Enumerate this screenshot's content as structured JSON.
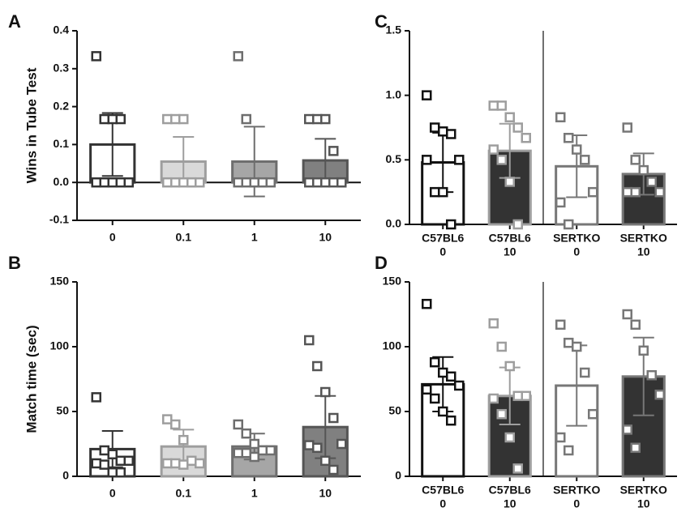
{
  "chart_data": [
    {
      "type": "bar",
      "label": "A",
      "y_label": "Wins in Tube Test",
      "categories": [
        "0",
        "0.1",
        "1",
        "10"
      ],
      "values": [
        0.1,
        0.055,
        0.055,
        0.058
      ],
      "errors": [
        0.083,
        0.065,
        0.092,
        0.057
      ],
      "points": [
        [
          0.333,
          0.167,
          0.167,
          0.167,
          0,
          0,
          0,
          0,
          0
        ],
        [
          0.167,
          0.167,
          0.167,
          0,
          0,
          0,
          0,
          0,
          0
        ],
        [
          0.333,
          0.167,
          0,
          0,
          0,
          0,
          0,
          0,
          0
        ],
        [
          0.167,
          0.167,
          0.167,
          0.083,
          0,
          0,
          0,
          0,
          0,
          0
        ]
      ],
      "fill_colors": [
        "#ffffff",
        "#d9d9d9",
        "#a6a6a6",
        "#808080"
      ],
      "edge_colors": [
        "#333333",
        "#9e9e9e",
        "#6e6e6e",
        "#555555"
      ],
      "ylim": [
        -0.1,
        0.4
      ],
      "yticks": [
        -0.1,
        {
          "value": 0,
          "label": "0.0"
        },
        0.1,
        0.2,
        0.3,
        0.4
      ]
    },
    {
      "type": "bar",
      "label": "B",
      "y_label": "Match time (sec)",
      "categories": [
        "0",
        "0.1",
        "1",
        "10"
      ],
      "values": [
        21,
        23,
        23,
        38
      ],
      "errors": [
        14,
        13,
        10,
        24
      ],
      "points": [
        [
          61,
          20,
          17,
          12,
          12,
          10,
          9,
          3,
          3
        ],
        [
          44,
          40,
          28,
          12,
          10,
          10,
          10,
          9
        ],
        [
          40,
          33,
          25,
          20,
          20,
          18,
          18,
          15
        ],
        [
          105,
          85,
          65,
          45,
          25,
          24,
          22,
          12,
          5
        ]
      ],
      "fill_colors": [
        "#ffffff",
        "#d9d9d9",
        "#a6a6a6",
        "#808080"
      ],
      "edge_colors": [
        "#333333",
        "#9e9e9e",
        "#6e6e6e",
        "#555555"
      ],
      "ylim": [
        0,
        150
      ],
      "yticks": [
        0,
        50,
        100,
        150
      ]
    },
    {
      "type": "bar",
      "label": "C",
      "categories": [
        [
          "C57BL6",
          "0"
        ],
        [
          "C57BL6",
          "10"
        ],
        [
          "SERTKO",
          "0"
        ],
        [
          "SERTKO",
          "10"
        ]
      ],
      "values": [
        0.48,
        0.57,
        0.45,
        0.39
      ],
      "errors": [
        0.23,
        0.21,
        0.24,
        0.16
      ],
      "points": [
        [
          1.0,
          0.75,
          0.72,
          0.7,
          0.5,
          0.5,
          0.25,
          0.25,
          0
        ],
        [
          0.92,
          0.92,
          0.83,
          0.75,
          0.67,
          0.58,
          0.5,
          0.33,
          0
        ],
        [
          0.83,
          0.67,
          0.58,
          0.5,
          0.25,
          0.17,
          0
        ],
        [
          0.75,
          0.5,
          0.42,
          0.33,
          0.25,
          0.25,
          0.25
        ]
      ],
      "fill_colors": [
        "#ffffff",
        "#333333",
        "#ffffff",
        "#333333"
      ],
      "edge_colors": [
        "#111111",
        "#9e9e9e",
        "#777777",
        "#777777"
      ],
      "group_divider": true,
      "ylim": [
        0,
        1.5
      ],
      "yticks": [
        {
          "value": 0,
          "label": "0.0"
        },
        0.5,
        {
          "value": 1,
          "label": "1.0"
        },
        1.5
      ]
    },
    {
      "type": "bar",
      "label": "D",
      "categories": [
        [
          "C57BL6",
          "0"
        ],
        [
          "C57BL6",
          "10"
        ],
        [
          "SERTKO",
          "0"
        ],
        [
          "SERTKO",
          "10"
        ]
      ],
      "values": [
        71,
        62,
        70,
        77
      ],
      "errors": [
        21,
        22,
        31,
        30
      ],
      "points": [
        [
          133,
          88,
          80,
          77,
          70,
          67,
          60,
          50,
          43
        ],
        [
          118,
          100,
          85,
          62,
          62,
          60,
          48,
          30,
          6
        ],
        [
          117,
          103,
          100,
          80,
          48,
          30,
          20
        ],
        [
          125,
          117,
          97,
          78,
          63,
          36,
          22
        ]
      ],
      "fill_colors": [
        "#ffffff",
        "#333333",
        "#ffffff",
        "#333333"
      ],
      "edge_colors": [
        "#111111",
        "#9e9e9e",
        "#777777",
        "#777777"
      ],
      "group_divider": true,
      "ylim": [
        0,
        150
      ],
      "yticks": [
        0,
        50,
        100,
        150
      ]
    }
  ]
}
